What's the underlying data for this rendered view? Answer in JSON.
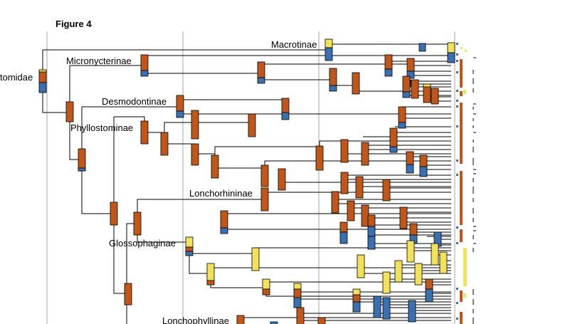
{
  "figure": {
    "title": "Figure 4"
  },
  "clades": {
    "macrotinae": "Macrotinae",
    "micronycterinae": "Micronycterinae",
    "family": "tomidae",
    "desmodontinae": "Desmodontinae",
    "phyllostominae": "Phyllostominae",
    "lonchorhininae": "Lonchorhininae",
    "glossophaginae": "Glossophaginae",
    "lonchophyllinae": "Lonchophyllinae"
  },
  "colors": {
    "state_orange": "#c0571a",
    "state_blue": "#3a6fb0",
    "state_yellow": "#f2e15a",
    "guide_grey": "#b4b4b4",
    "branch_black": "#000000"
  },
  "legend_states": [
    "orange",
    "blue",
    "yellow"
  ]
}
